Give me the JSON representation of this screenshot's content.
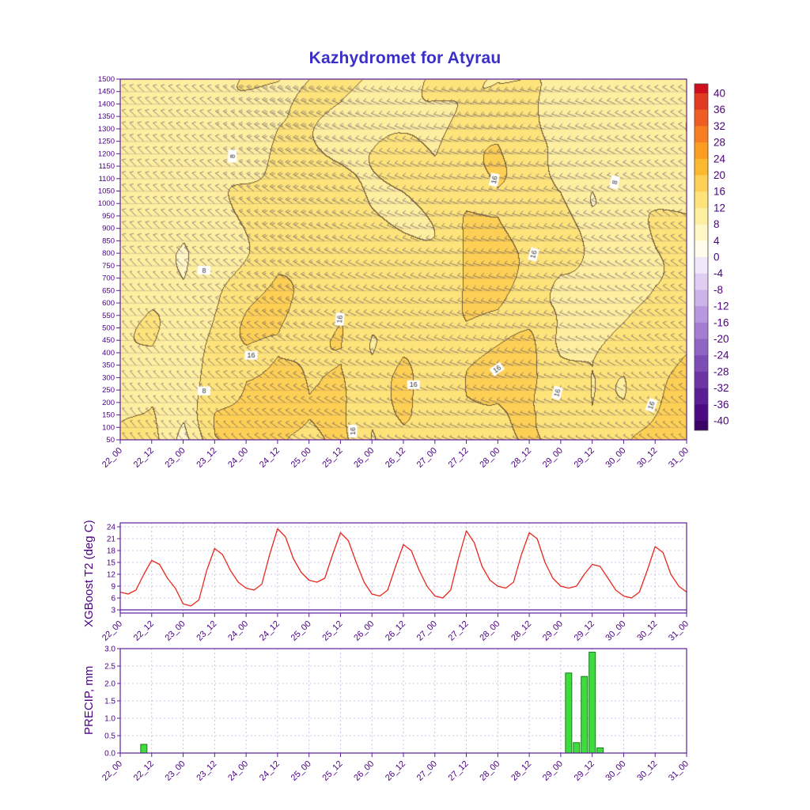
{
  "title": "Kazhydromet for Atyrau",
  "colors": {
    "title": "#3b2fc9",
    "axis": "#5c1f9c",
    "tick_text": "#4b0082",
    "grid": "#c2b3dd",
    "line": "#e8281e",
    "bar_fill": "#3fdc3f",
    "bar_edge": "#1d7a1d",
    "barb": "#4a3f63",
    "level_line": "rgba(90,60,110,0.40)"
  },
  "x_axis": {
    "tick_labels": [
      "22_00",
      "22_12",
      "23_00",
      "23_12",
      "24_00",
      "24_12",
      "25_00",
      "25_12",
      "26_00",
      "26_12",
      "27_00",
      "27_12",
      "28_00",
      "28_12",
      "29_00",
      "29_12",
      "30_00",
      "30_12",
      "31_00"
    ],
    "hours_span": 216,
    "step_hours": 12
  },
  "chart_data": [
    {
      "type": "heatmap",
      "name": "wind-temperature-meteogram",
      "level_ticks": [
        50,
        100,
        150,
        200,
        250,
        300,
        350,
        400,
        450,
        500,
        550,
        600,
        650,
        700,
        750,
        800,
        850,
        900,
        950,
        1000,
        1050,
        1100,
        1150,
        1200,
        1250,
        1300,
        1350,
        1400,
        1450,
        1500
      ],
      "grid_levels": [
        50,
        150,
        300,
        450,
        600,
        800,
        1000,
        1200,
        1350,
        1500
      ],
      "grid_times_h": [
        0,
        12,
        24,
        36,
        48,
        60,
        72,
        84,
        96,
        108,
        120,
        132,
        144,
        156,
        168,
        180,
        192,
        204,
        216
      ],
      "temperature_c": [
        [
          11,
          13,
          7,
          15,
          16,
          18,
          14,
          17,
          13,
          15,
          13,
          16,
          15,
          16,
          15,
          13,
          14,
          18,
          19
        ],
        [
          11,
          13,
          8,
          15,
          17,
          18,
          15,
          17,
          13,
          16,
          13,
          16,
          15,
          17,
          16,
          12,
          13,
          17,
          19
        ],
        [
          10,
          12,
          9,
          14,
          17,
          17,
          15,
          17,
          13,
          16,
          13,
          16,
          16,
          17,
          14,
          11,
          12,
          16,
          17
        ],
        [
          10,
          12,
          9,
          13,
          16,
          17,
          15,
          16,
          13,
          15,
          13,
          16,
          16,
          16,
          11,
          11,
          12,
          14,
          15
        ],
        [
          10,
          11,
          8,
          12,
          15,
          16,
          14,
          15,
          13,
          14,
          13,
          16,
          17,
          15,
          11,
          11,
          12,
          13,
          13
        ],
        [
          10,
          11,
          7,
          11,
          13,
          15,
          14,
          14,
          13,
          13,
          13,
          16,
          17,
          15,
          13,
          10,
          11,
          12,
          12
        ],
        [
          10,
          10,
          9,
          10,
          12,
          14,
          13,
          13,
          12,
          12,
          13,
          16,
          17,
          14,
          13,
          9,
          10,
          11,
          12
        ],
        [
          9,
          10,
          10,
          10,
          11,
          13,
          12,
          12,
          12,
          12,
          12,
          15,
          15,
          13,
          12,
          9,
          10,
          11,
          11
        ],
        [
          9,
          9,
          10,
          10,
          11,
          12,
          12,
          12,
          11,
          11,
          12,
          14,
          14,
          13,
          11,
          10,
          10,
          11,
          11
        ],
        [
          9,
          9,
          10,
          10,
          11,
          12,
          12,
          12,
          11,
          11,
          12,
          13,
          13,
          12,
          11,
          10,
          10,
          11,
          11
        ]
      ],
      "wind": {
        "dir_low_deg": [
          320,
          318,
          315,
          312,
          310,
          305,
          300,
          298,
          295,
          295,
          292,
          290,
          288,
          288,
          290,
          295,
          300,
          305,
          308
        ],
        "dir_high_deg": [
          315,
          312,
          310,
          308,
          305,
          300,
          295,
          292,
          290,
          288,
          285,
          282,
          280,
          282,
          285,
          290,
          295,
          300,
          302
        ],
        "speed_low_kt": [
          5,
          5,
          5,
          6,
          7,
          8,
          7,
          7,
          6,
          6,
          6,
          7,
          7,
          7,
          6,
          5,
          5,
          6,
          7
        ],
        "speed_high_kt": [
          10,
          10,
          10,
          12,
          18,
          28,
          25,
          18,
          12,
          12,
          12,
          14,
          15,
          13,
          12,
          10,
          10,
          12,
          12
        ]
      },
      "contour_labels": [
        {
          "t_h": 43,
          "level": 1190,
          "text": "8",
          "rot": -90
        },
        {
          "t_h": 143,
          "level": 1095,
          "text": "16",
          "rot": -78
        },
        {
          "t_h": 189,
          "level": 1085,
          "text": "8",
          "rot": -80
        },
        {
          "t_h": 32,
          "level": 730,
          "text": "8",
          "rot": 0
        },
        {
          "t_h": 158,
          "level": 795,
          "text": "16",
          "rot": -75
        },
        {
          "t_h": 84,
          "level": 535,
          "text": "16",
          "rot": -85
        },
        {
          "t_h": 50,
          "level": 388,
          "text": "16",
          "rot": 0
        },
        {
          "t_h": 144,
          "level": 333,
          "text": "16",
          "rot": -35
        },
        {
          "t_h": 112,
          "level": 270,
          "text": "16",
          "rot": 0
        },
        {
          "t_h": 32,
          "level": 245,
          "text": "8",
          "rot": 0
        },
        {
          "t_h": 167,
          "level": 238,
          "text": "16",
          "rot": -75
        },
        {
          "t_h": 203,
          "level": 188,
          "text": "16",
          "rot": -70
        },
        {
          "t_h": 89,
          "level": 85,
          "text": "16",
          "rot": -90
        }
      ],
      "colorbar": {
        "labels": [
          40,
          36,
          32,
          28,
          24,
          20,
          16,
          12,
          8,
          4,
          0,
          -4,
          -8,
          -12,
          -16,
          -20,
          -24,
          -28,
          -32,
          -36,
          -40
        ],
        "colors": [
          "#cf0e1e",
          "#e03b21",
          "#ef5c24",
          "#f77e22",
          "#fc9c20",
          "#fdb92e",
          "#fdd055",
          "#fde37a",
          "#fdeea0",
          "#fef6c6",
          "#fffceb",
          "#f2e7fa",
          "#e0cdf2",
          "#ccb2e9",
          "#b897de",
          "#a47dd2",
          "#9064c4",
          "#7d4cb5",
          "#6b35a5",
          "#5a1f94",
          "#4a0a82",
          "#3a0366"
        ]
      }
    },
    {
      "type": "line",
      "ylabel": "XGBoost T2 (deg C)",
      "yticks": [
        3,
        6,
        9,
        12,
        15,
        18,
        21,
        24
      ],
      "ylim": [
        2.2,
        25
      ],
      "x_step_hours": 3,
      "values": [
        7.5,
        7,
        8,
        12,
        15.5,
        14.5,
        11,
        8.5,
        4.5,
        4,
        5.5,
        13,
        18.5,
        17,
        13,
        10,
        8.5,
        8,
        9.5,
        17,
        23.5,
        21.5,
        16,
        12.5,
        10.5,
        10,
        11,
        17,
        22.5,
        20.5,
        15,
        10,
        7,
        6.5,
        8,
        14,
        19.5,
        18,
        13,
        9,
        6.5,
        6,
        8,
        16,
        23,
        20,
        14,
        10.5,
        9,
        8.5,
        10,
        17,
        22.5,
        21,
        15,
        11,
        9,
        8.5,
        9,
        12,
        14.5,
        14,
        11,
        8,
        6.5,
        6,
        7.5,
        13,
        19,
        17.5,
        12,
        9,
        7.5
      ]
    },
    {
      "type": "bar",
      "ylabel": "PRECIP, mm",
      "ytick_labels": [
        "0.0",
        "0.5",
        "1.0",
        "1.5",
        "2.0",
        "2.5",
        "3.0"
      ],
      "ylim": [
        0,
        3
      ],
      "bars": [
        {
          "t_h": 9,
          "mm": 0.25
        },
        {
          "t_h": 171,
          "mm": 2.3
        },
        {
          "t_h": 174,
          "mm": 0.3
        },
        {
          "t_h": 177,
          "mm": 2.2
        },
        {
          "t_h": 180,
          "mm": 2.9
        },
        {
          "t_h": 183,
          "mm": 0.15
        }
      ]
    }
  ]
}
